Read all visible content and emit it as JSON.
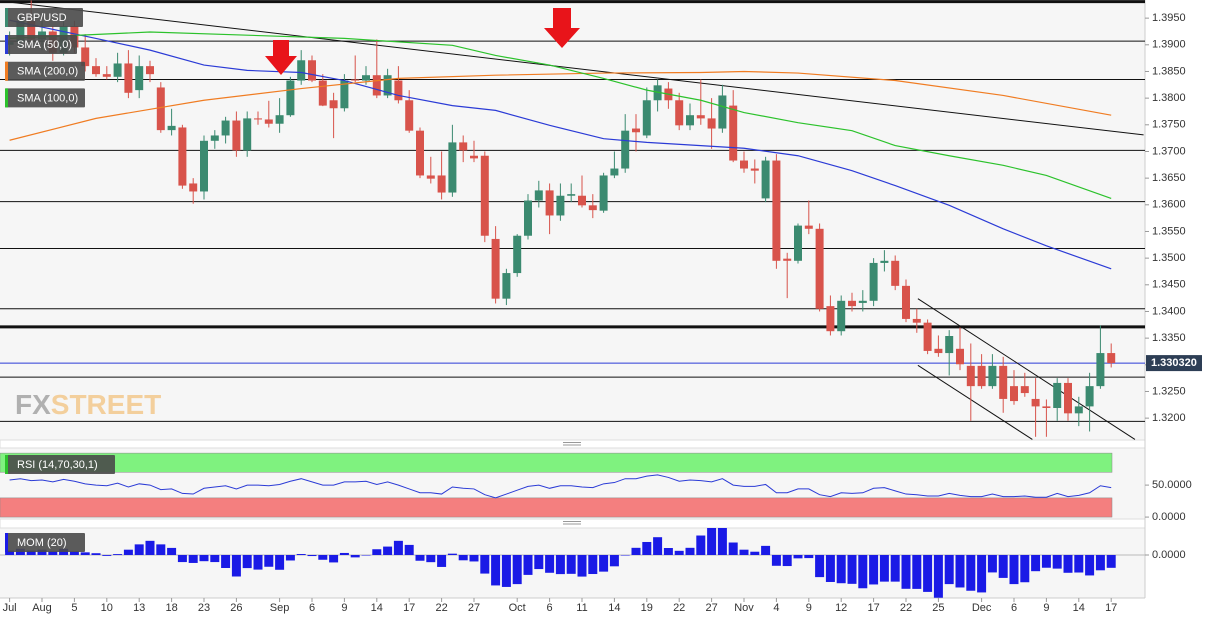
{
  "chart_data": [
    {
      "type": "candlestick",
      "title": "GBP/USD",
      "categories": [
        "Jul",
        null,
        null,
        "Aug",
        null,
        null,
        "5",
        null,
        null,
        "10",
        null,
        null,
        "13",
        null,
        null,
        "18",
        null,
        null,
        "23",
        null,
        null,
        "26",
        null,
        null,
        null,
        "Sep",
        null,
        null,
        "6",
        null,
        null,
        "9",
        null,
        null,
        "14",
        null,
        null,
        "17",
        null,
        null,
        "22",
        null,
        null,
        "27",
        null,
        null,
        null,
        "Oct",
        null,
        null,
        "6",
        null,
        null,
        "11",
        null,
        null,
        "14",
        null,
        null,
        "19",
        null,
        null,
        "22",
        null,
        null,
        "27",
        null,
        null,
        "Nov",
        null,
        null,
        "4",
        null,
        null,
        "9",
        null,
        null,
        "12",
        null,
        null,
        "17",
        null,
        null,
        "22",
        null,
        null,
        "25",
        null,
        null,
        null,
        "Dec",
        null,
        null,
        "6",
        null,
        null,
        "9",
        null,
        null,
        "14",
        null,
        null,
        "17"
      ],
      "open": [
        1.39,
        1.3905,
        1.3945,
        1.391,
        1.3925,
        1.3885,
        1.3935,
        1.3895,
        1.386,
        1.3845,
        1.384,
        1.3865,
        1.3815,
        1.386,
        1.382,
        1.374,
        1.3745,
        1.364,
        1.3625,
        1.372,
        1.373,
        1.3758,
        1.3702,
        1.3762,
        1.376,
        1.3752,
        1.3768,
        1.3833,
        1.3871,
        1.3833,
        1.3796,
        1.3781,
        1.3835,
        1.3833,
        1.3843,
        1.3805,
        1.3833,
        1.3796,
        1.3739,
        1.3655,
        1.3655,
        1.3623,
        1.3717,
        1.3692,
        1.3692,
        1.3536,
        1.3424,
        1.3472,
        1.3542,
        1.3608,
        1.3627,
        1.358,
        1.3617,
        1.3617,
        1.3599,
        1.3589,
        1.3655,
        1.3668,
        1.3743,
        1.373,
        1.3796,
        1.3818,
        1.3796,
        1.3749,
        1.3768,
        1.3762,
        1.3743,
        1.3786,
        1.3683,
        1.3668,
        1.3612,
        1.3683,
        1.3499,
        1.3495,
        1.3561,
        1.3555,
        1.341,
        1.3363,
        1.342,
        1.3416,
        1.342,
        1.3491,
        1.3495,
        1.3448,
        1.3386,
        1.3379,
        1.333,
        1.3322,
        1.333,
        1.3298,
        1.3298,
        1.326,
        1.3298,
        1.326,
        1.326,
        1.3236,
        1.3222,
        1.3219,
        1.3266,
        1.3209,
        1.3222,
        1.326,
        1.3322
      ],
      "high": [
        1.3925,
        1.3955,
        1.3983,
        1.3945,
        1.3935,
        1.3955,
        1.3945,
        1.392,
        1.3875,
        1.386,
        1.3885,
        1.389,
        1.388,
        1.387,
        1.383,
        1.378,
        1.375,
        1.365,
        1.373,
        1.374,
        1.3765,
        1.3775,
        1.3775,
        1.3775,
        1.3795,
        1.38,
        1.384,
        1.389,
        1.388,
        1.3845,
        1.381,
        1.3845,
        1.388,
        1.386,
        1.391,
        1.3855,
        1.386,
        1.3815,
        1.3745,
        1.369,
        1.37,
        1.375,
        1.373,
        1.372,
        1.37,
        1.356,
        1.348,
        1.3545,
        1.362,
        1.3645,
        1.364,
        1.364,
        1.364,
        1.3655,
        1.362,
        1.366,
        1.37,
        1.377,
        1.377,
        1.382,
        1.3835,
        1.383,
        1.381,
        1.379,
        1.3835,
        1.38,
        1.3825,
        1.3815,
        1.37,
        1.3685,
        1.369,
        1.3695,
        1.351,
        1.3565,
        1.3608,
        1.3565,
        1.343,
        1.343,
        1.3435,
        1.344,
        1.35,
        1.3515,
        1.3505,
        1.346,
        1.3405,
        1.3385,
        1.3355,
        1.3365,
        1.337,
        1.334,
        1.332,
        1.332,
        1.3315,
        1.329,
        1.3285,
        1.3275,
        1.3235,
        1.3275,
        1.3275,
        1.324,
        1.3285,
        1.3374,
        1.334
      ],
      "low": [
        1.388,
        1.3895,
        1.3905,
        1.389,
        1.387,
        1.388,
        1.3885,
        1.385,
        1.384,
        1.3835,
        1.383,
        1.38,
        1.38,
        1.383,
        1.3735,
        1.373,
        1.363,
        1.3602,
        1.361,
        1.3705,
        1.3715,
        1.369,
        1.369,
        1.375,
        1.3745,
        1.3735,
        1.3765,
        1.3825,
        1.383,
        1.3785,
        1.3725,
        1.3775,
        1.383,
        1.3825,
        1.38,
        1.38,
        1.379,
        1.3735,
        1.365,
        1.364,
        1.361,
        1.3615,
        1.368,
        1.368,
        1.353,
        1.3415,
        1.3412,
        1.3465,
        1.3535,
        1.3595,
        1.3545,
        1.357,
        1.3605,
        1.3595,
        1.3575,
        1.3585,
        1.365,
        1.366,
        1.37,
        1.3725,
        1.3775,
        1.378,
        1.374,
        1.374,
        1.375,
        1.3705,
        1.3735,
        1.368,
        1.366,
        1.364,
        1.3605,
        1.348,
        1.3425,
        1.349,
        1.3545,
        1.34,
        1.3355,
        1.3355,
        1.34,
        1.34,
        1.341,
        1.3475,
        1.344,
        1.338,
        1.336,
        1.332,
        1.3315,
        1.328,
        1.329,
        1.3195,
        1.3255,
        1.3255,
        1.321,
        1.3225,
        1.324,
        1.3165,
        1.3165,
        1.3195,
        1.3195,
        1.3185,
        1.3175,
        1.3255,
        1.3295
      ],
      "close": [
        1.3905,
        1.3945,
        1.391,
        1.3925,
        1.3885,
        1.3935,
        1.3895,
        1.386,
        1.3845,
        1.384,
        1.3865,
        1.381,
        1.386,
        1.3845,
        1.374,
        1.3748,
        1.3636,
        1.3625,
        1.372,
        1.373,
        1.3758,
        1.3702,
        1.3762,
        1.376,
        1.3752,
        1.3768,
        1.3833,
        1.3871,
        1.3833,
        1.3786,
        1.3781,
        1.3833,
        1.3833,
        1.3843,
        1.3805,
        1.3843,
        1.3796,
        1.3739,
        1.3655,
        1.3649,
        1.3623,
        1.3717,
        1.3702,
        1.3687,
        1.3542,
        1.3424,
        1.3472,
        1.3542,
        1.3608,
        1.3627,
        1.358,
        1.3617,
        1.362,
        1.3599,
        1.359,
        1.3655,
        1.3668,
        1.3739,
        1.3736,
        1.3796,
        1.3824,
        1.3796,
        1.3749,
        1.3768,
        1.3762,
        1.3743,
        1.3805,
        1.3683,
        1.3668,
        1.3664,
        1.3683,
        1.3495,
        1.3495,
        1.3561,
        1.3555,
        1.3405,
        1.3363,
        1.342,
        1.341,
        1.342,
        1.3491,
        1.3495,
        1.3448,
        1.3386,
        1.3379,
        1.3326,
        1.3322,
        1.3354,
        1.3301,
        1.326,
        1.326,
        1.3298,
        1.3236,
        1.3232,
        1.3247,
        1.3222,
        1.3219,
        1.3266,
        1.3209,
        1.3222,
        1.326,
        1.3322,
        1.33032
      ],
      "up_color": "#3b8a70",
      "down_color": "#d8534b",
      "series": [
        {
          "name": "SMA (50,0)",
          "color": "#2b3bd6",
          "x": [
            0,
            8,
            13,
            18,
            22,
            27,
            31,
            36,
            41,
            45,
            50,
            55,
            59,
            64,
            68,
            73,
            78,
            82,
            87,
            92,
            96,
            102
          ],
          "values": [
            1.3946,
            1.3912,
            1.389,
            1.3862,
            1.3852,
            1.3848,
            1.3833,
            1.3805,
            1.3786,
            1.3777,
            1.3749,
            1.3724,
            1.3717,
            1.3711,
            1.3706,
            1.3692,
            1.3664,
            1.3636,
            1.3599,
            1.3555,
            1.3523,
            1.348
          ]
        },
        {
          "name": "SMA (200,0)",
          "color": "#f07c22",
          "x": [
            0,
            8,
            18,
            27,
            36,
            45,
            55,
            64,
            68,
            73,
            82,
            92,
            102
          ],
          "values": [
            1.3721,
            1.3762,
            1.3796,
            1.3818,
            1.3837,
            1.3843,
            1.3847,
            1.3848,
            1.385,
            1.3847,
            1.3833,
            1.3805,
            1.3768
          ]
        },
        {
          "name": "SMA (100,0)",
          "color": "#2cc22c",
          "x": [
            0,
            13,
            22,
            31,
            41,
            45,
            50,
            55,
            59,
            64,
            68,
            73,
            78,
            82,
            87,
            92,
            96,
            102
          ],
          "values": [
            1.3912,
            1.3924,
            1.3918,
            1.3912,
            1.3899,
            1.388,
            1.3862,
            1.3837,
            1.3815,
            1.3796,
            1.3773,
            1.3754,
            1.3739,
            1.3711,
            1.3692,
            1.3674,
            1.3655,
            1.3612
          ]
        }
      ],
      "levels": [
        1.3907,
        1.3835,
        1.3702,
        1.3606,
        1.3518,
        1.3405,
        1.3277,
        1.3194
      ],
      "strong_levels": [
        1.3981,
        1.3371
      ],
      "trendlines": [
        {
          "x": [
            0,
            105
          ],
          "values": [
            1.398,
            1.3731
          ]
        },
        {
          "x": [
            84.1,
            104.2
          ],
          "values": [
            1.3424,
            1.316
          ]
        },
        {
          "x": [
            84.1,
            94.7
          ],
          "values": [
            1.3299,
            1.316
          ]
        }
      ],
      "last_price": {
        "value": 1.33032,
        "label": "1.330320",
        "color": "#2b3bd6"
      },
      "ylim": [
        1.3159,
        1.3984
      ],
      "yticks": [
        {
          "value": 1.395,
          "label": "1.3950"
        },
        {
          "value": 1.39,
          "label": "1.3900"
        },
        {
          "value": 1.385,
          "label": "1.3850"
        },
        {
          "value": 1.38,
          "label": "1.3800"
        },
        {
          "value": 1.375,
          "label": "1.3750"
        },
        {
          "value": 1.37,
          "label": "1.3700"
        },
        {
          "value": 1.365,
          "label": "1.3650"
        },
        {
          "value": 1.36,
          "label": "1.3600"
        },
        {
          "value": 1.355,
          "label": "1.3550"
        },
        {
          "value": 1.35,
          "label": "1.3500"
        },
        {
          "value": 1.345,
          "label": "1.3450"
        },
        {
          "value": 1.34,
          "label": "1.3400"
        },
        {
          "value": 1.335,
          "label": "1.3350"
        },
        {
          "value": 1.33,
          "label": "1.3300"
        },
        {
          "value": 1.325,
          "label": "1.3250"
        },
        {
          "value": 1.32,
          "label": "1.3200"
        }
      ],
      "watermark": [
        "FX",
        "STREET"
      ]
    },
    {
      "type": "line",
      "title": "RSI (14,70,30,1)",
      "color": "#2b3bd6",
      "values": [
        58,
        60,
        57,
        58,
        55,
        59,
        56,
        52,
        50,
        49,
        53,
        47,
        52,
        50,
        43,
        44,
        37,
        36,
        45,
        47,
        49,
        44,
        50,
        50,
        49,
        51,
        56,
        60,
        55,
        50,
        50,
        55,
        55,
        56,
        51,
        55,
        50,
        44,
        38,
        38,
        36,
        47,
        45,
        44,
        35,
        30,
        36,
        42,
        48,
        50,
        45,
        49,
        49,
        47,
        46,
        52,
        54,
        60,
        60,
        64,
        66,
        62,
        56,
        58,
        57,
        55,
        60,
        50,
        48,
        48,
        51,
        38,
        38,
        44,
        44,
        35,
        32,
        38,
        37,
        38,
        45,
        46,
        41,
        36,
        35,
        33,
        33,
        37,
        34,
        32,
        32,
        36,
        32,
        32,
        33,
        31,
        31,
        37,
        32,
        34,
        38,
        49,
        46
      ],
      "bands": [
        {
          "from": 70,
          "to": 100,
          "color": "#7ff27f"
        },
        {
          "from": 0,
          "to": 30,
          "color": "#f47f7f"
        }
      ],
      "ylim": [
        -3,
        108
      ],
      "yticks": [
        {
          "value": 50,
          "label": "50.0000"
        },
        {
          "value": 0,
          "label": "0.0000"
        }
      ]
    },
    {
      "type": "bar",
      "title": "MOM (20)",
      "color": "#1a1ae6",
      "values": [
        0.005,
        0.007,
        0.005,
        0.006,
        0.004,
        0.007,
        0.004,
        0.003,
        0.002,
        -0.001,
        0.001,
        0.006,
        0.012,
        0.016,
        0.012,
        0.008,
        -0.008,
        -0.009,
        -0.007,
        -0.008,
        -0.0147,
        -0.0243,
        -0.0148,
        -0.0165,
        -0.0133,
        -0.0167,
        -0.0062,
        0.0011,
        -0.0012,
        -0.0054,
        -0.0084,
        0.0023,
        -0.0027,
        -0.0002,
        0.0065,
        0.0095,
        0.016,
        0.0114,
        -0.0065,
        -0.0081,
        -0.0135,
        0.0015,
        -0.006,
        -0.0073,
        -0.021,
        -0.0344,
        -0.0361,
        -0.0329,
        -0.0225,
        -0.0159,
        -0.0201,
        -0.0216,
        -0.0213,
        -0.0244,
        -0.0215,
        -0.0188,
        -0.0128,
        0,
        0.0081,
        0.0147,
        0.0201,
        0.0079,
        0.0047,
        0.0081,
        0.022,
        0.0319,
        0.0333,
        0.0141,
        0.006,
        0.0037,
        0.0103,
        -0.0122,
        -0.0125,
        -0.0038,
        -0.0035,
        -0.025,
        -0.0305,
        -0.0319,
        -0.0326,
        -0.0376,
        -0.0333,
        -0.0301,
        -0.0301,
        -0.0382,
        -0.0383,
        -0.0417,
        -0.0483,
        -0.0329,
        -0.0367,
        -0.0404,
        -0.0423,
        -0.0197,
        -0.0259,
        -0.0329,
        -0.0308,
        -0.0183,
        -0.0144,
        -0.0154,
        -0.0201,
        -0.0198,
        -0.0231,
        -0.0173,
        -0.0145
      ],
      "ylim": [
        -0.0486,
        0.0305
      ],
      "yticks": [
        {
          "value": 0,
          "label": "0.0000"
        }
      ]
    }
  ]
}
